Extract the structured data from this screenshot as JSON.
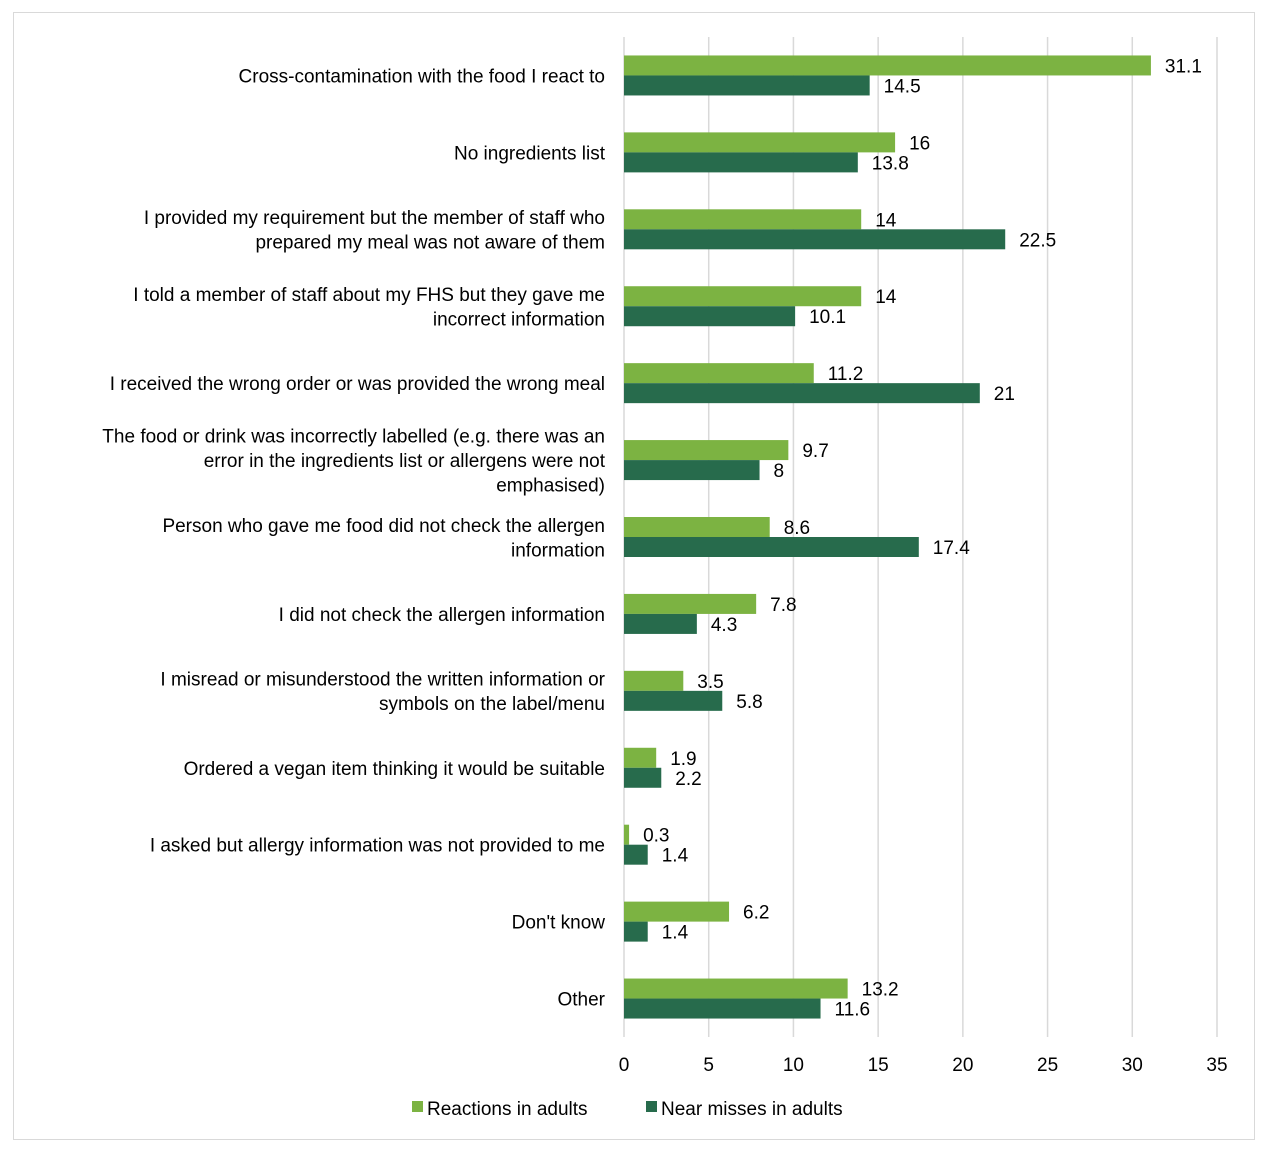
{
  "chart_data": {
    "type": "bar",
    "orientation": "horizontal",
    "categories": [
      "Cross-contamination with the food I react to",
      "No ingredients list",
      "I provided my requirement but the member of staff who prepared my meal was not aware of them",
      "I told a member of staff about my FHS but they gave me incorrect information",
      "I received the wrong order or was provided the wrong meal",
      "The food or drink was incorrectly labelled (e.g. there was an error in the ingredients list or allergens were not emphasised)",
      "Person who gave me food did not check the allergen information",
      "I did not check the allergen information",
      "I misread or misunderstood the written information or symbols on the label/menu",
      "Ordered a vegan item thinking it would be suitable",
      "I asked but allergy information was not provided to me",
      "Don't know",
      "Other"
    ],
    "category_lines": [
      [
        "Cross-contamination with the food I react to"
      ],
      [
        "No ingredients list"
      ],
      [
        "I provided my requirement but the member of staff who",
        "prepared my meal was not aware of them"
      ],
      [
        "I told a member of staff about my FHS but they gave me",
        "incorrect information"
      ],
      [
        "I received the wrong order or was provided the wrong meal"
      ],
      [
        "The food or drink was incorrectly labelled (e.g. there was an",
        "error in the ingredients list or allergens were not",
        "emphasised)"
      ],
      [
        "Person who gave me food did not check the allergen",
        "information"
      ],
      [
        "I did not check the allergen information"
      ],
      [
        "I misread or misunderstood the written information or",
        "symbols on the label/menu"
      ],
      [
        "Ordered a vegan item thinking it would be suitable"
      ],
      [
        "I asked but allergy information was not provided to me"
      ],
      [
        "Don't know"
      ],
      [
        "Other"
      ]
    ],
    "series": [
      {
        "name": "Reactions in adults",
        "color": "#7cb342",
        "values": [
          31.1,
          16,
          14,
          14,
          11.2,
          9.7,
          8.6,
          7.8,
          3.5,
          1.9,
          0.3,
          6.2,
          13.2
        ],
        "labels": [
          "31.1",
          "16",
          "14",
          "14",
          "11.2",
          "9.7",
          "8.6",
          "7.8",
          "3.5",
          "1.9",
          "0.3",
          "6.2",
          "13.2"
        ]
      },
      {
        "name": "Near misses in adults",
        "color": "#276b4c",
        "values": [
          14.5,
          13.8,
          22.5,
          10.1,
          21,
          8,
          17.4,
          4.3,
          5.8,
          2.2,
          1.4,
          1.4,
          11.6
        ],
        "labels": [
          "14.5",
          "13.8",
          "22.5",
          "10.1",
          "21",
          "8",
          "17.4",
          "4.3",
          "5.8",
          "2.2",
          "1.4",
          "1.4",
          "11.6"
        ]
      }
    ],
    "xlim": [
      0,
      35
    ],
    "x_ticks": [
      "0",
      "5",
      "10",
      "15",
      "20",
      "25",
      "30",
      "35"
    ],
    "grid": true,
    "legend_position": "bottom",
    "title": "",
    "xlabel": "",
    "ylabel": ""
  }
}
